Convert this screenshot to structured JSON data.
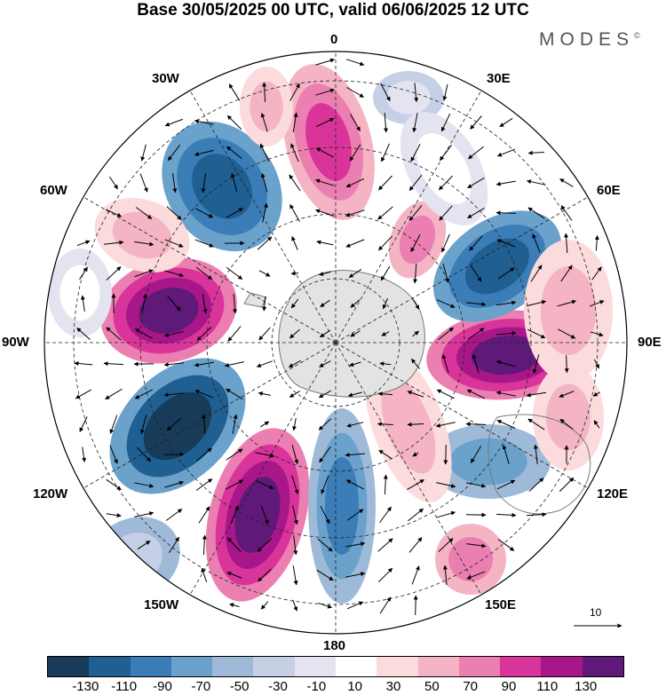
{
  "title": "Base 30/05/2025 00 UTC, valid 06/06/2025 12 UTC",
  "brand": "MODES",
  "brand_mark": "©",
  "longitude_labels": {
    "n0": "0",
    "e30": "30E",
    "e60": "60E",
    "e90": "90E",
    "e120": "120E",
    "e150": "150E",
    "s180": "180",
    "w150": "150W",
    "w120": "120W",
    "w90": "90W",
    "w60": "60W",
    "w30": "30W"
  },
  "reference_vector_label": "10",
  "colorbar": {
    "colors": [
      "#173b58",
      "#1f5f92",
      "#3a7db7",
      "#6aa2cc",
      "#9ebad8",
      "#c5cfe5",
      "#e4e4f1",
      "#ffffff",
      "#fbdbdc",
      "#f4b4c4",
      "#ec7fb1",
      "#d9349a",
      "#a81789",
      "#5f1978"
    ],
    "tick_labels": [
      "-130",
      "-110",
      "-90",
      "-70",
      "-50",
      "-30",
      "-10",
      "10",
      "30",
      "50",
      "70",
      "90",
      "110",
      "130"
    ]
  },
  "colors": {
    "land": "#e3e3e3",
    "coast": "#7a7a7a"
  }
}
